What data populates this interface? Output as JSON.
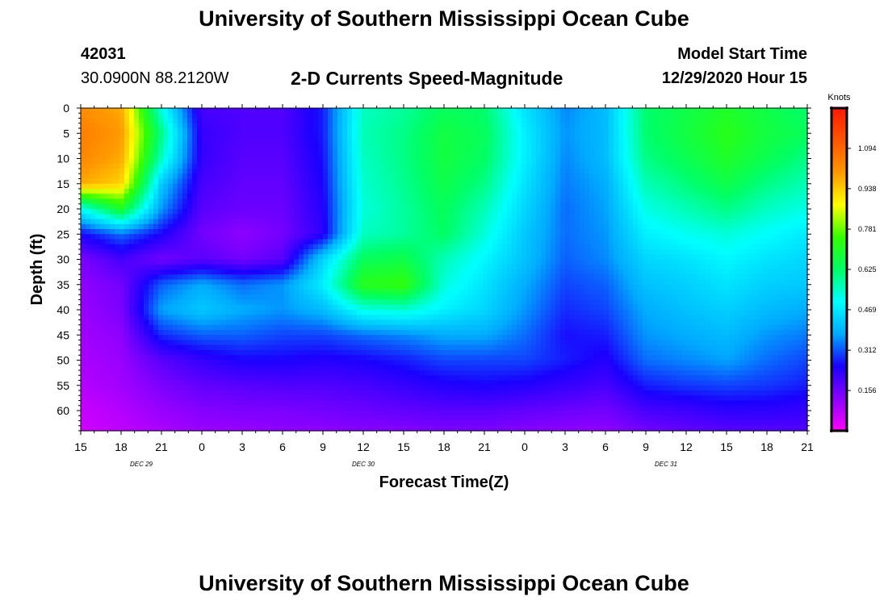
{
  "header": {
    "title": "University of Southern Mississippi Ocean Cube",
    "station_id": "42031",
    "station_coords": "30.0900N 88.2120W",
    "chart_title": "2-D Currents Speed-Magnitude",
    "model_start_label": "Model Start Time",
    "model_start_value": "12/29/2020 Hour 15"
  },
  "footer": {
    "title": "University of Southern Mississippi Ocean Cube"
  },
  "chart_data": {
    "type": "heatmap",
    "title": "2-D Currents Speed-Magnitude",
    "xlabel": "Forecast Time(Z)",
    "ylabel": "Depth (ft)",
    "x_tick_labels": [
      "15",
      "18",
      "21",
      "0",
      "3",
      "6",
      "9",
      "12",
      "15",
      "18",
      "21",
      "0",
      "3",
      "6",
      "9",
      "12",
      "15",
      "18",
      "21"
    ],
    "x_date_labels": [
      {
        "label": "DEC 29",
        "tick_index": 1.5
      },
      {
        "label": "DEC 30",
        "tick_index": 7
      },
      {
        "label": "DEC 31",
        "tick_index": 14.5
      }
    ],
    "y_tick_labels": [
      "0",
      "5",
      "10",
      "15",
      "20",
      "25",
      "30",
      "35",
      "40",
      "45",
      "50",
      "55",
      "60"
    ],
    "ylim": [
      0,
      64
    ],
    "y_inverted": true,
    "colorbar": {
      "title": "Knots",
      "tick_labels": [
        "0.156",
        "0.312",
        "0.469",
        "0.625",
        "0.781",
        "0.938",
        "1.094"
      ],
      "vmin": 0.0,
      "vmax": 1.25,
      "colors": [
        "#ff00ff",
        "#8a00ff",
        "#1a00ff",
        "#00aaff",
        "#00ffff",
        "#00ff66",
        "#33ff00",
        "#ffff00",
        "#ff9900",
        "#ff5500",
        "#ff1a00"
      ]
    },
    "x_hours": [
      0,
      3,
      6,
      9,
      12,
      15,
      18,
      21,
      24,
      27,
      30,
      33,
      36,
      39,
      42,
      45,
      48,
      51,
      54
    ],
    "depths": [
      0,
      5,
      10,
      15,
      20,
      25,
      30,
      35,
      40,
      45,
      50,
      55,
      60,
      64
    ],
    "speed_knots": [
      [
        1.02,
        0.98,
        0.52,
        0.2,
        0.19,
        0.19,
        0.27,
        0.55,
        0.58,
        0.64,
        0.62,
        0.46,
        0.35,
        0.4,
        0.62,
        0.66,
        0.7,
        0.66,
        0.62
      ],
      [
        1.05,
        1.0,
        0.6,
        0.22,
        0.19,
        0.19,
        0.27,
        0.56,
        0.6,
        0.67,
        0.64,
        0.48,
        0.36,
        0.4,
        0.62,
        0.67,
        0.72,
        0.67,
        0.64
      ],
      [
        1.03,
        0.98,
        0.55,
        0.22,
        0.18,
        0.18,
        0.26,
        0.55,
        0.6,
        0.67,
        0.63,
        0.48,
        0.35,
        0.4,
        0.6,
        0.65,
        0.7,
        0.65,
        0.6
      ],
      [
        0.98,
        0.93,
        0.42,
        0.2,
        0.17,
        0.17,
        0.25,
        0.54,
        0.59,
        0.66,
        0.6,
        0.46,
        0.34,
        0.38,
        0.56,
        0.61,
        0.66,
        0.6,
        0.56
      ],
      [
        0.5,
        0.7,
        0.36,
        0.18,
        0.16,
        0.16,
        0.24,
        0.53,
        0.58,
        0.64,
        0.56,
        0.44,
        0.33,
        0.37,
        0.52,
        0.56,
        0.6,
        0.55,
        0.52
      ],
      [
        0.25,
        0.33,
        0.25,
        0.15,
        0.12,
        0.15,
        0.23,
        0.55,
        0.58,
        0.63,
        0.53,
        0.42,
        0.33,
        0.36,
        0.48,
        0.51,
        0.53,
        0.5,
        0.47
      ],
      [
        0.14,
        0.2,
        0.15,
        0.18,
        0.15,
        0.18,
        0.44,
        0.64,
        0.66,
        0.56,
        0.49,
        0.41,
        0.32,
        0.35,
        0.44,
        0.46,
        0.49,
        0.46,
        0.44
      ],
      [
        0.12,
        0.15,
        0.32,
        0.38,
        0.33,
        0.36,
        0.48,
        0.72,
        0.74,
        0.53,
        0.46,
        0.38,
        0.3,
        0.32,
        0.41,
        0.43,
        0.46,
        0.43,
        0.42
      ],
      [
        0.11,
        0.14,
        0.37,
        0.42,
        0.38,
        0.36,
        0.4,
        0.52,
        0.54,
        0.48,
        0.44,
        0.36,
        0.28,
        0.3,
        0.38,
        0.41,
        0.43,
        0.4,
        0.38
      ],
      [
        0.1,
        0.12,
        0.28,
        0.32,
        0.32,
        0.3,
        0.3,
        0.33,
        0.35,
        0.38,
        0.38,
        0.33,
        0.26,
        0.27,
        0.36,
        0.38,
        0.4,
        0.36,
        0.34
      ],
      [
        0.09,
        0.11,
        0.18,
        0.22,
        0.25,
        0.25,
        0.24,
        0.25,
        0.27,
        0.3,
        0.3,
        0.3,
        0.27,
        0.24,
        0.33,
        0.35,
        0.37,
        0.33,
        0.3
      ],
      [
        0.08,
        0.1,
        0.14,
        0.17,
        0.18,
        0.19,
        0.19,
        0.2,
        0.22,
        0.24,
        0.25,
        0.24,
        0.22,
        0.2,
        0.27,
        0.29,
        0.3,
        0.29,
        0.27
      ],
      [
        0.06,
        0.08,
        0.11,
        0.13,
        0.14,
        0.14,
        0.15,
        0.16,
        0.17,
        0.18,
        0.18,
        0.17,
        0.16,
        0.15,
        0.2,
        0.21,
        0.23,
        0.23,
        0.22
      ],
      [
        0.05,
        0.07,
        0.09,
        0.11,
        0.11,
        0.12,
        0.12,
        0.13,
        0.13,
        0.14,
        0.14,
        0.13,
        0.12,
        0.12,
        0.15,
        0.17,
        0.18,
        0.18,
        0.19
      ]
    ]
  }
}
